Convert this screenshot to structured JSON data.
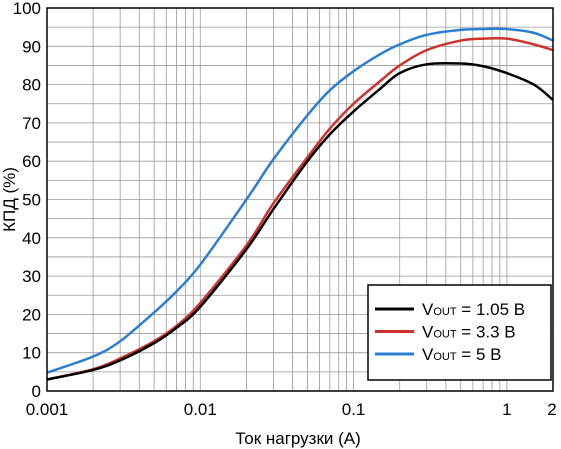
{
  "chart_data": {
    "type": "line",
    "xlabel": "Ток нагрузки (A)",
    "ylabel": "КПД (%)",
    "x_scale": "log",
    "xlim": [
      0.001,
      2
    ],
    "ylim": [
      0,
      100
    ],
    "x_ticks": [
      "0.001",
      "0.01",
      "0.1",
      "1",
      "2"
    ],
    "y_ticks": [
      "0",
      "10",
      "20",
      "30",
      "40",
      "50",
      "60",
      "70",
      "80",
      "90",
      "100"
    ],
    "grid": true,
    "legend_position": "bottom-right",
    "series": [
      {
        "name": "VOUT = 1.05 В",
        "name_parts": {
          "v": "V",
          "sub": "OUT",
          "rest": " = 1.05 В"
        },
        "color": "#000000",
        "x": [
          0.001,
          0.002,
          0.003,
          0.005,
          0.007,
          0.01,
          0.02,
          0.03,
          0.05,
          0.07,
          0.1,
          0.15,
          0.2,
          0.3,
          0.5,
          0.7,
          1.0,
          1.5,
          2.0
        ],
        "y": [
          3,
          5.5,
          8,
          12.5,
          16.5,
          22,
          37,
          47.5,
          60,
          67,
          73,
          79,
          83,
          85.3,
          85.5,
          84.8,
          83,
          80,
          76
        ]
      },
      {
        "name": "VOUT = 3.3 В",
        "name_parts": {
          "v": "V",
          "sub": "OUT",
          "rest": " = 3.3 В"
        },
        "color": "#d0312d",
        "x": [
          0.001,
          0.002,
          0.003,
          0.005,
          0.007,
          0.01,
          0.02,
          0.03,
          0.05,
          0.07,
          0.1,
          0.15,
          0.2,
          0.3,
          0.5,
          0.7,
          1.0,
          1.5,
          2.0
        ],
        "y": [
          3,
          5.7,
          8.5,
          13,
          17,
          23,
          38,
          49,
          61,
          68.5,
          75,
          81,
          85,
          89,
          91.5,
          92,
          92,
          90.5,
          89
        ]
      },
      {
        "name": "VOUT = 5 В",
        "name_parts": {
          "v": "V",
          "sub": "OUT",
          "rest": " = 5 В"
        },
        "color": "#2a7fd4",
        "x": [
          0.001,
          0.002,
          0.003,
          0.005,
          0.007,
          0.01,
          0.02,
          0.03,
          0.05,
          0.07,
          0.1,
          0.15,
          0.2,
          0.3,
          0.5,
          0.7,
          1.0,
          1.5,
          2.0
        ],
        "y": [
          4.8,
          9,
          13,
          20.5,
          26,
          33,
          50,
          60.5,
          72,
          78.5,
          83.5,
          88,
          90.5,
          93,
          94.3,
          94.5,
          94.5,
          93.5,
          91.5
        ]
      }
    ]
  }
}
